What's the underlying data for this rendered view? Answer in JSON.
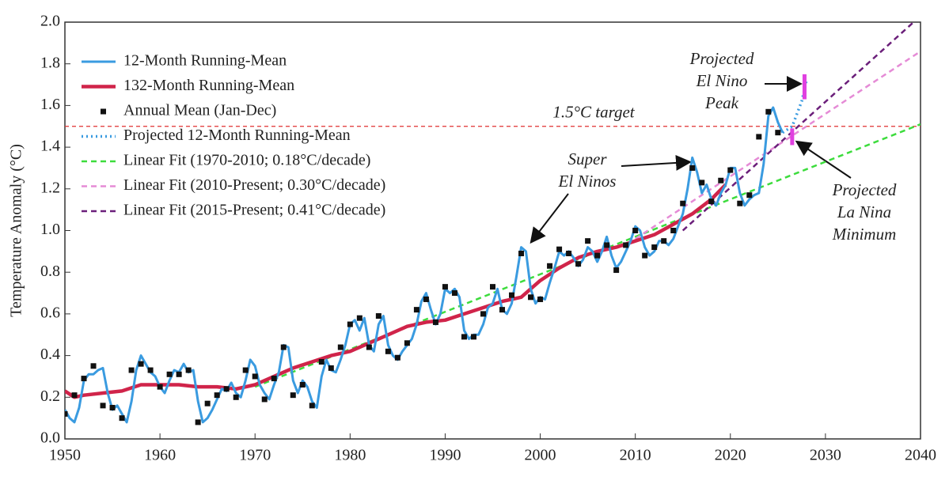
{
  "chart_data": {
    "type": "line",
    "y_label": "Temperature Anomaly (°C)",
    "xlim": [
      1950,
      2040
    ],
    "xticks": [
      1950,
      1960,
      1970,
      1980,
      1990,
      2000,
      2010,
      2020,
      2030,
      2040
    ],
    "ylim": [
      0,
      2
    ],
    "yticks": [
      {
        "value": 0,
        "label": "0.0"
      },
      0.2,
      0.4,
      0.6,
      0.8,
      {
        "value": 1,
        "label": "1.0"
      },
      1.2,
      1.4,
      1.6,
      1.8,
      {
        "value": 2,
        "label": "2.0"
      }
    ],
    "series": [
      {
        "name": "12-Month Running-Mean",
        "color": "#3a9be0",
        "style": "solid",
        "x": [
          1950,
          1950.5,
          1951,
          1951.5,
          1952,
          1952.5,
          1953,
          1953.5,
          1954,
          1954.5,
          1955,
          1955.5,
          1956,
          1956.5,
          1957,
          1957.5,
          1958,
          1958.5,
          1959,
          1959.5,
          1960,
          1960.5,
          1961,
          1961.5,
          1962,
          1962.5,
          1963,
          1963.5,
          1964,
          1964.5,
          1965,
          1965.5,
          1966,
          1966.5,
          1967,
          1967.5,
          1968,
          1968.5,
          1969,
          1969.5,
          1970,
          1970.5,
          1971,
          1971.5,
          1972,
          1972.5,
          1973,
          1973.5,
          1974,
          1974.5,
          1975,
          1975.5,
          1976,
          1976.5,
          1977,
          1977.5,
          1978,
          1978.5,
          1979,
          1979.5,
          1980,
          1980.5,
          1981,
          1981.5,
          1982,
          1982.5,
          1983,
          1983.5,
          1984,
          1984.5,
          1985,
          1985.5,
          1986,
          1986.5,
          1987,
          1987.5,
          1988,
          1988.5,
          1989,
          1989.5,
          1990,
          1990.5,
          1991,
          1991.5,
          1992,
          1992.5,
          1993,
          1993.5,
          1994,
          1994.5,
          1995,
          1995.5,
          1996,
          1996.5,
          1997,
          1997.5,
          1998,
          1998.5,
          1999,
          1999.5,
          2000,
          2000.5,
          2001,
          2001.5,
          2002,
          2002.5,
          2003,
          2003.5,
          2004,
          2004.5,
          2005,
          2005.5,
          2006,
          2006.5,
          2007,
          2007.5,
          2008,
          2008.5,
          2009,
          2009.5,
          2010,
          2010.5,
          2011,
          2011.5,
          2012,
          2012.5,
          2013,
          2013.5,
          2014,
          2014.5,
          2015,
          2015.5,
          2016,
          2016.5,
          2017,
          2017.5,
          2018,
          2018.5,
          2019,
          2019.5,
          2020,
          2020.5,
          2021,
          2021.5,
          2022,
          2022.5,
          2023,
          2023.5,
          2024,
          2024.5,
          2025,
          2025.5
        ],
        "values": [
          0.14,
          0.1,
          0.08,
          0.15,
          0.28,
          0.31,
          0.31,
          0.33,
          0.34,
          0.22,
          0.14,
          0.16,
          0.12,
          0.08,
          0.18,
          0.33,
          0.4,
          0.36,
          0.32,
          0.3,
          0.25,
          0.22,
          0.28,
          0.33,
          0.32,
          0.36,
          0.32,
          0.33,
          0.18,
          0.08,
          0.1,
          0.14,
          0.19,
          0.24,
          0.23,
          0.27,
          0.22,
          0.2,
          0.28,
          0.38,
          0.35,
          0.26,
          0.22,
          0.19,
          0.26,
          0.32,
          0.45,
          0.44,
          0.28,
          0.22,
          0.28,
          0.25,
          0.18,
          0.15,
          0.3,
          0.38,
          0.33,
          0.32,
          0.38,
          0.45,
          0.55,
          0.57,
          0.52,
          0.58,
          0.45,
          0.42,
          0.55,
          0.59,
          0.45,
          0.4,
          0.38,
          0.42,
          0.45,
          0.48,
          0.55,
          0.66,
          0.7,
          0.62,
          0.55,
          0.6,
          0.72,
          0.7,
          0.72,
          0.68,
          0.52,
          0.48,
          0.5,
          0.5,
          0.55,
          0.63,
          0.65,
          0.72,
          0.62,
          0.6,
          0.65,
          0.78,
          0.92,
          0.9,
          0.72,
          0.65,
          0.68,
          0.67,
          0.75,
          0.82,
          0.9,
          0.88,
          0.9,
          0.87,
          0.83,
          0.86,
          0.92,
          0.9,
          0.85,
          0.9,
          0.97,
          0.88,
          0.82,
          0.85,
          0.9,
          0.95,
          1.02,
          1.0,
          0.92,
          0.88,
          0.9,
          0.95,
          0.95,
          0.93,
          0.96,
          1.02,
          1.08,
          1.2,
          1.35,
          1.28,
          1.18,
          1.22,
          1.15,
          1.12,
          1.18,
          1.22,
          1.3,
          1.3,
          1.18,
          1.12,
          1.15,
          1.17,
          1.18,
          1.32,
          1.55,
          1.59,
          1.52,
          1.47
        ]
      },
      {
        "name": "132-Month Running-Mean",
        "color": "#d0244a",
        "style": "thick",
        "x": [
          1950,
          1951,
          1952,
          1954,
          1956,
          1958,
          1960,
          1962,
          1964,
          1966,
          1968,
          1970,
          1972,
          1974,
          1976,
          1978,
          1980,
          1982,
          1984,
          1986,
          1988,
          1990,
          1992,
          1994,
          1996,
          1998,
          2000,
          2002,
          2004,
          2006,
          2008,
          2010,
          2012,
          2014,
          2016,
          2018,
          2019.5
        ],
        "values": [
          0.23,
          0.2,
          0.21,
          0.22,
          0.23,
          0.26,
          0.26,
          0.26,
          0.25,
          0.25,
          0.24,
          0.26,
          0.3,
          0.34,
          0.37,
          0.4,
          0.42,
          0.46,
          0.5,
          0.54,
          0.56,
          0.57,
          0.6,
          0.63,
          0.66,
          0.68,
          0.76,
          0.82,
          0.87,
          0.9,
          0.92,
          0.95,
          0.98,
          1.03,
          1.08,
          1.15,
          1.22
        ]
      },
      {
        "name": "Annual Mean (Jan-Dec)",
        "color": "#111111",
        "style": "markers",
        "x": [
          1950,
          1951,
          1952,
          1953,
          1954,
          1955,
          1956,
          1957,
          1958,
          1959,
          1960,
          1961,
          1962,
          1963,
          1964,
          1965,
          1966,
          1967,
          1968,
          1969,
          1970,
          1971,
          1972,
          1973,
          1974,
          1975,
          1976,
          1977,
          1978,
          1979,
          1980,
          1981,
          1982,
          1983,
          1984,
          1985,
          1986,
          1987,
          1988,
          1989,
          1990,
          1991,
          1992,
          1993,
          1994,
          1995,
          1996,
          1997,
          1998,
          1999,
          2000,
          2001,
          2002,
          2003,
          2004,
          2005,
          2006,
          2007,
          2008,
          2009,
          2010,
          2011,
          2012,
          2013,
          2014,
          2015,
          2016,
          2017,
          2018,
          2019,
          2020,
          2021,
          2022,
          2023,
          2024,
          2025
        ],
        "values": [
          0.12,
          0.21,
          0.29,
          0.35,
          0.16,
          0.15,
          0.1,
          0.33,
          0.36,
          0.33,
          0.25,
          0.31,
          0.31,
          0.33,
          0.08,
          0.17,
          0.21,
          0.24,
          0.2,
          0.33,
          0.3,
          0.19,
          0.29,
          0.44,
          0.21,
          0.26,
          0.16,
          0.37,
          0.34,
          0.44,
          0.55,
          0.58,
          0.44,
          0.59,
          0.42,
          0.39,
          0.46,
          0.62,
          0.67,
          0.56,
          0.73,
          0.7,
          0.49,
          0.49,
          0.6,
          0.73,
          0.62,
          0.69,
          0.89,
          0.68,
          0.67,
          0.83,
          0.91,
          0.89,
          0.84,
          0.95,
          0.88,
          0.93,
          0.81,
          0.93,
          1.0,
          0.88,
          0.92,
          0.95,
          1.0,
          1.13,
          1.3,
          1.23,
          1.14,
          1.24,
          1.29,
          1.13,
          1.17,
          1.45,
          1.57,
          1.47
        ]
      },
      {
        "name": "Projected 12-Month Running-Mean",
        "color": "#3a9be0",
        "style": "dotted",
        "x": [
          2025.5,
          2026.5,
          2027.5,
          2028
        ],
        "values": [
          1.47,
          1.5,
          1.62,
          1.72
        ]
      },
      {
        "name": "Linear Fit (1970-2010; 0.18°C/decade)",
        "color": "#3ddc3d",
        "style": "dashed",
        "x": [
          1970,
          2040
        ],
        "values": [
          0.25,
          1.51
        ]
      },
      {
        "name": "Linear Fit (2010-Present; 0.30°C/decade)",
        "color": "#e58bd6",
        "style": "dashed",
        "x": [
          2010,
          2040
        ],
        "values": [
          0.96,
          1.86
        ]
      },
      {
        "name": "Linear Fit (2015-Present; 0.41°C/decade)",
        "color": "#6b1f7a",
        "style": "dashed",
        "x": [
          2015,
          2040
        ],
        "values": [
          1.0,
          2.03
        ]
      }
    ],
    "reference_lines": [
      {
        "value": 1.5,
        "label": "1.5°C target",
        "color": "#e03030"
      }
    ],
    "projection_markers": {
      "color": "#e040e0",
      "items": [
        {
          "x": 2027.8,
          "low": 1.63,
          "high": 1.75
        },
        {
          "x": 2026.5,
          "low": 1.41,
          "high": 1.49
        }
      ]
    },
    "annotations": [
      {
        "lines": [
          "Super",
          "El Ninos"
        ]
      },
      {
        "lines": [
          "Projected",
          "El Nino",
          "Peak"
        ]
      },
      {
        "lines": [
          "Projected",
          "La Nina",
          "Minimum"
        ]
      }
    ]
  }
}
